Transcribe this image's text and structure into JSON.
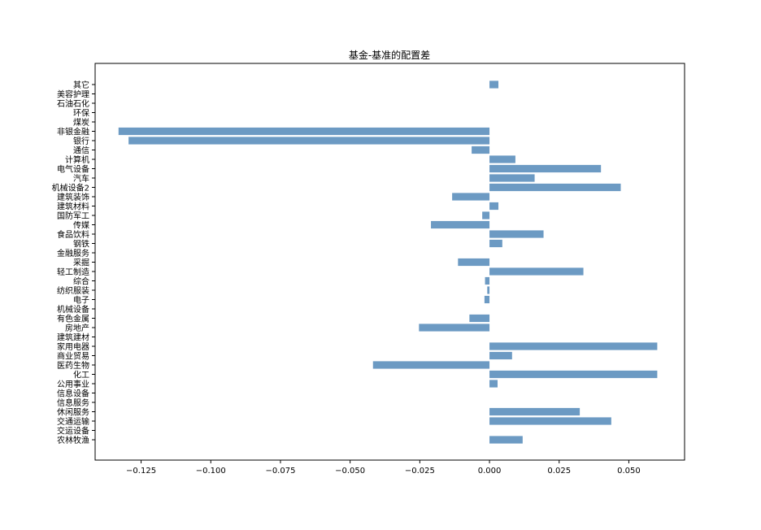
{
  "chart_data": {
    "type": "bar",
    "orientation": "horizontal",
    "title": "基金-基准的配置差",
    "xlabel": "",
    "ylabel": "",
    "xlim": [
      -0.1415,
      0.07
    ],
    "xticks": [
      -0.125,
      -0.1,
      -0.075,
      -0.05,
      -0.025,
      0.0,
      0.025,
      0.05
    ],
    "xtick_labels": [
      "−0.125",
      "−0.100",
      "−0.075",
      "−0.050",
      "−0.025",
      "0.000",
      "0.025",
      "0.050"
    ],
    "grid": false,
    "bar_color": "#6c9ac3",
    "categories": [
      "农林牧渔",
      "交运设备",
      "交通运输",
      "休闲服务",
      "信息服务",
      "信息设备",
      "公用事业",
      "化工",
      "医药生物",
      "商业贸易",
      "家用电器",
      "建筑建材",
      "房地产",
      "有色金属",
      "机械设备",
      "电子",
      "纺织服装",
      "综合",
      "轻工制造",
      "采掘",
      "金融服务",
      "钢铁",
      "食品饮料",
      "传媒",
      "国防军工",
      "建筑材料",
      "建筑装饰",
      "机械设备2",
      "汽车",
      "电气设备",
      "计算机",
      "通信",
      "银行",
      "非银金融",
      "煤炭",
      "环保",
      "石油石化",
      "美容护理",
      "其它"
    ],
    "values": [
      0.0119,
      0.0,
      0.0437,
      0.0324,
      0.0,
      0.0,
      0.0029,
      0.0602,
      -0.0418,
      0.0081,
      0.0602,
      0.0,
      -0.0253,
      -0.0072,
      0.0,
      -0.0018,
      -0.0008,
      -0.0016,
      0.0337,
      -0.0113,
      0.0,
      0.0046,
      0.0194,
      -0.021,
      -0.0026,
      0.0032,
      -0.0134,
      0.0471,
      0.0162,
      0.04,
      0.0093,
      -0.0064,
      -0.1295,
      -0.1331,
      0.0,
      0.0,
      0.0,
      0.0,
      0.0032
    ]
  }
}
